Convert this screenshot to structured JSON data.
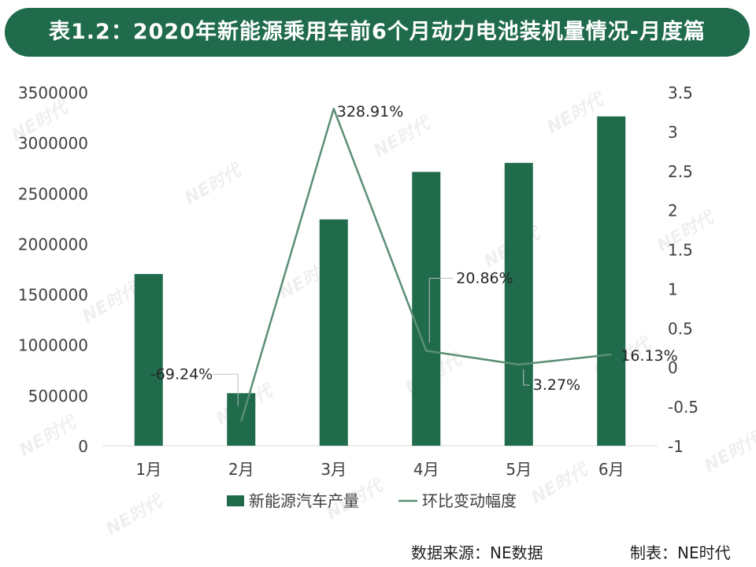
{
  "title": "表1.2：2020年新能源乘用车前6个月动力电池装机量情况-月度篇",
  "footer": {
    "source": "数据来源：NE数据",
    "maker": "制表：NE时代"
  },
  "watermark": "NE时代",
  "colors": {
    "bar": "#1f6b4c",
    "line": "#5b8f75",
    "title_bg": "#1f6b4c"
  },
  "chart_data": {
    "type": "bar",
    "categories": [
      "1月",
      "2月",
      "3月",
      "4月",
      "5月",
      "6月"
    ],
    "series": [
      {
        "name": "新能源汽车产量",
        "type": "bar",
        "axis": "left",
        "values": [
          1700000,
          520000,
          2240000,
          2710000,
          2800000,
          3260000
        ]
      },
      {
        "name": "环比变动幅度",
        "type": "line",
        "axis": "right",
        "values": [
          null,
          -0.6924,
          3.2891,
          0.2086,
          0.0327,
          0.1613
        ],
        "labels": [
          "",
          "-69.24%",
          "328.91%",
          "20.86%",
          "3.27%",
          "16.13%"
        ]
      }
    ],
    "y_left": {
      "lim": [
        0,
        3500000
      ],
      "ticks": [
        0,
        500000,
        1000000,
        1500000,
        2000000,
        2500000,
        3000000,
        3500000
      ],
      "tick_labels": [
        "0",
        "500000",
        "1000000",
        "1500000",
        "2000000",
        "2500000",
        "3000000",
        "3500000"
      ]
    },
    "y_right": {
      "lim": [
        -1,
        3.5
      ],
      "ticks": [
        -1,
        -0.5,
        0,
        0.5,
        1,
        1.5,
        2,
        2.5,
        3,
        3.5
      ],
      "tick_labels": [
        "-1",
        "-0.5",
        "0",
        "0.5",
        "1",
        "1.5",
        "2",
        "2.5",
        "3",
        "3.5"
      ]
    },
    "grid": false,
    "legend": "bottom"
  }
}
